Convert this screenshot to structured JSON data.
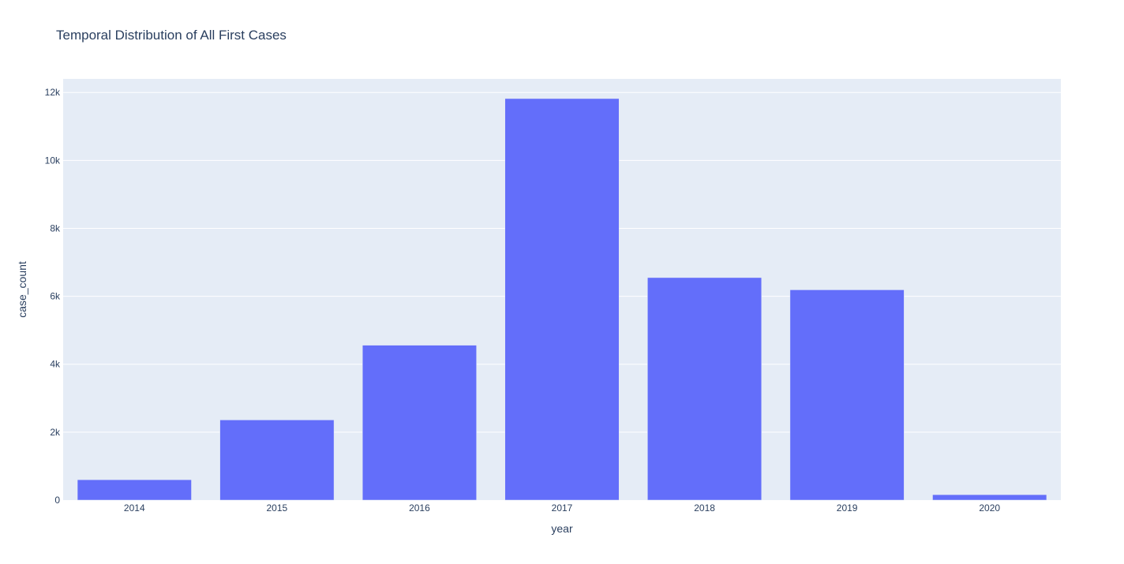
{
  "chart_data": {
    "type": "bar",
    "title": "Temporal Distribution of All First Cases",
    "xlabel": "year",
    "ylabel": "case_count",
    "categories": [
      "2014",
      "2015",
      "2016",
      "2017",
      "2018",
      "2019",
      "2020"
    ],
    "values": [
      600,
      2360,
      4560,
      11820,
      6550,
      6190,
      160
    ],
    "ylim": [
      0,
      12400
    ],
    "yticks": [
      0,
      2000,
      4000,
      6000,
      8000,
      10000,
      12000
    ],
    "ytick_labels": [
      "0",
      "2k",
      "4k",
      "6k",
      "8k",
      "10k",
      "12k"
    ],
    "grid": true,
    "legend": "none",
    "colors": {
      "bar": "#636efa",
      "plot_background": "#e5ecf6",
      "grid": "#ffffff",
      "text": "#2a3f5f"
    }
  }
}
